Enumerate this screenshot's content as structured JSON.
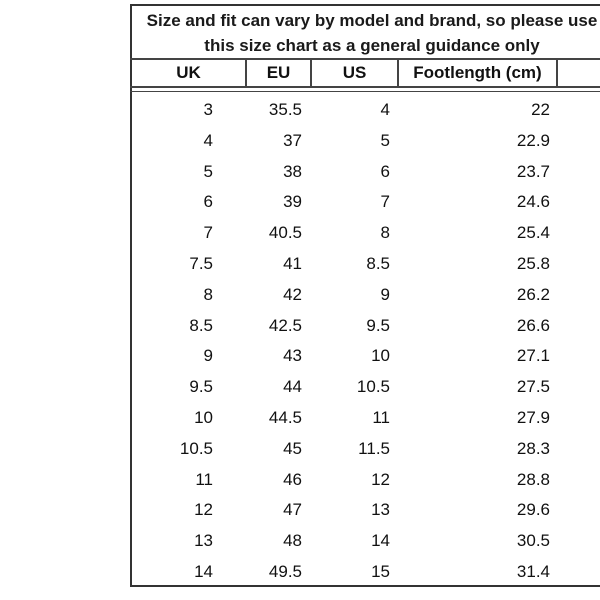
{
  "title": [
    "Size and fit can vary by model and brand, so please use",
    "this size chart as a general guidance only"
  ],
  "headers": [
    "UK",
    "EU",
    "US",
    "Footlength (cm)"
  ],
  "rows": [
    [
      "3",
      "35.5",
      "4",
      "22"
    ],
    [
      "4",
      "37",
      "5",
      "22.9"
    ],
    [
      "5",
      "38",
      "6",
      "23.7"
    ],
    [
      "6",
      "39",
      "7",
      "24.6"
    ],
    [
      "7",
      "40.5",
      "8",
      "25.4"
    ],
    [
      "7.5",
      "41",
      "8.5",
      "25.8"
    ],
    [
      "8",
      "42",
      "9",
      "26.2"
    ],
    [
      "8.5",
      "42.5",
      "9.5",
      "26.6"
    ],
    [
      "9",
      "43",
      "10",
      "27.1"
    ],
    [
      "9.5",
      "44",
      "10.5",
      "27.5"
    ],
    [
      "10",
      "44.5",
      "11",
      "27.9"
    ],
    [
      "10.5",
      "45",
      "11.5",
      "28.3"
    ],
    [
      "11",
      "46",
      "12",
      "28.8"
    ],
    [
      "12",
      "47",
      "13",
      "29.6"
    ],
    [
      "13",
      "48",
      "14",
      "30.5"
    ],
    [
      "14",
      "49.5",
      "15",
      "31.4"
    ]
  ]
}
